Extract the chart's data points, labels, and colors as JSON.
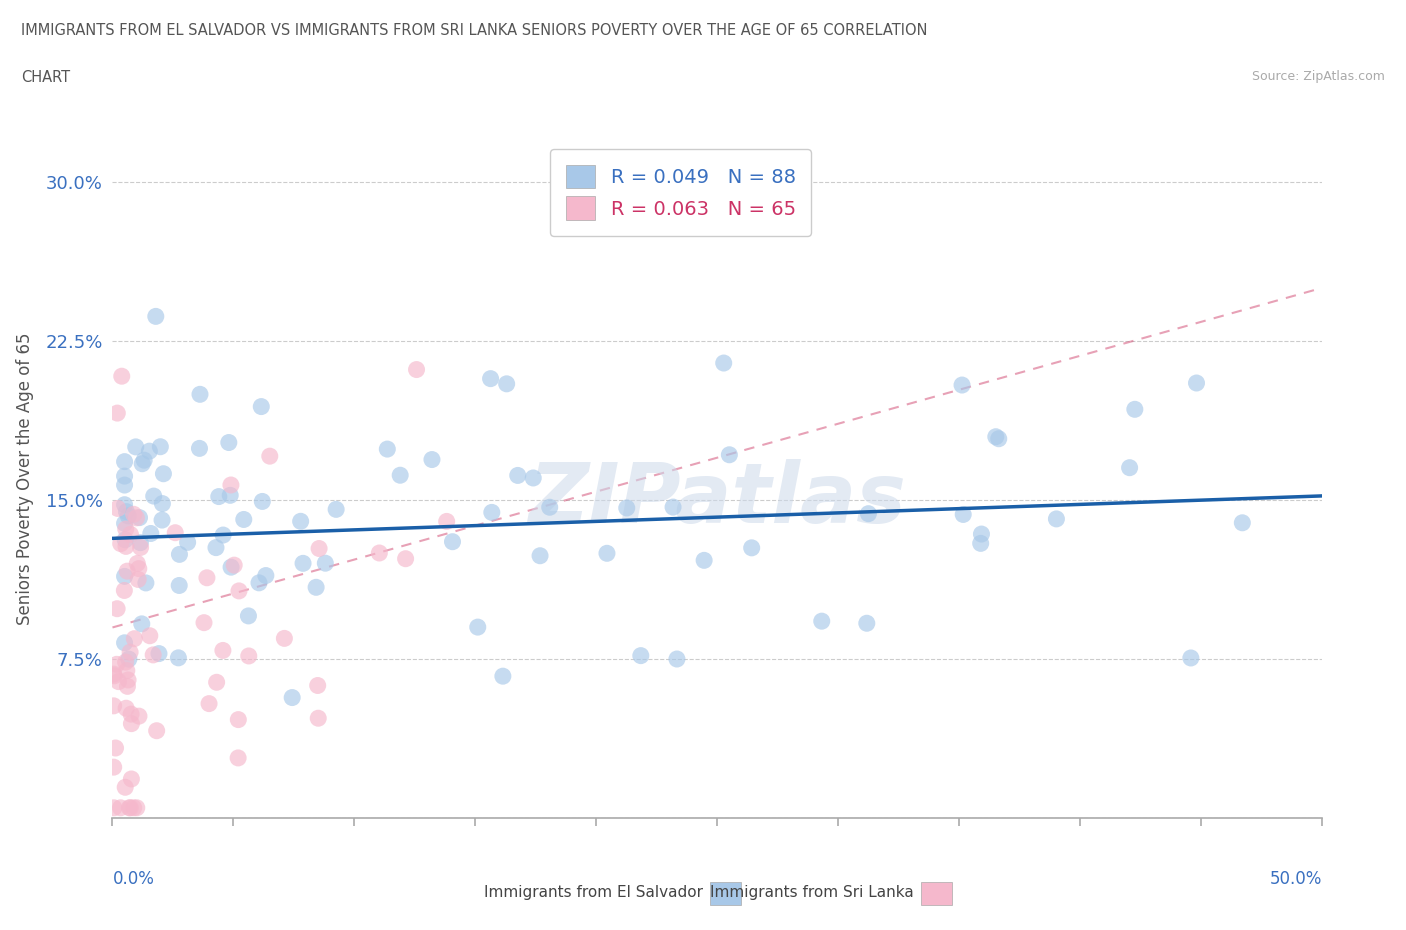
{
  "title_line1": "IMMIGRANTS FROM EL SALVADOR VS IMMIGRANTS FROM SRI LANKA SENIORS POVERTY OVER THE AGE OF 65 CORRELATION",
  "title_line2": "CHART",
  "source": "Source: ZipAtlas.com",
  "ylabel": "Seniors Poverty Over the Age of 65",
  "xlim": [
    0,
    50
  ],
  "ylim": [
    0,
    32
  ],
  "yticks": [
    0,
    7.5,
    15.0,
    22.5,
    30.0
  ],
  "ytick_labels": [
    "",
    "7.5%",
    "15.0%",
    "22.5%",
    "30.0%"
  ],
  "legend_el_salvador": "Immigrants from El Salvador",
  "legend_sri_lanka": "Immigrants from Sri Lanka",
  "r_el_salvador": 0.049,
  "n_el_salvador": 88,
  "r_sri_lanka": 0.063,
  "n_sri_lanka": 65,
  "color_el_salvador": "#a8c8e8",
  "color_sri_lanka": "#f5b8cc",
  "color_trendline_el_salvador": "#1a5fa8",
  "color_trendline_sri_lanka": "#d4547a",
  "watermark": "ZIPatlas",
  "watermark_color": "#ccd9ea",
  "es_trend_x0": 0,
  "es_trend_y0": 13.2,
  "es_trend_x1": 50,
  "es_trend_y1": 15.2,
  "sl_trend_x0": 0,
  "sl_trend_y0": 9.0,
  "sl_trend_x1": 50,
  "sl_trend_y1": 25.0
}
